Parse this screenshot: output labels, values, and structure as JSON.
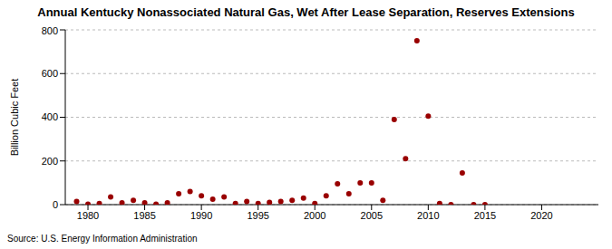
{
  "chart_data": {
    "type": "scatter",
    "title": "Annual Kentucky Nonassociated Natural Gas, Wet After Lease Separation, Reserves Extensions",
    "y_label": "Billion Cubic Feet",
    "source": "Source: U.S. Energy Information Administration",
    "x": [
      1979,
      1980,
      1981,
      1982,
      1983,
      1984,
      1985,
      1986,
      1987,
      1988,
      1989,
      1990,
      1991,
      1992,
      1993,
      1994,
      1995,
      1996,
      1997,
      1998,
      1999,
      2000,
      2001,
      2002,
      2003,
      2004,
      2005,
      2006,
      2007,
      2008,
      2009,
      2010,
      2011,
      2012,
      2013,
      2014,
      2015
    ],
    "values": [
      15,
      2,
      5,
      35,
      8,
      20,
      8,
      2,
      8,
      50,
      60,
      40,
      25,
      35,
      5,
      15,
      5,
      10,
      15,
      20,
      30,
      5,
      40,
      95,
      50,
      100,
      100,
      20,
      390,
      210,
      750,
      405,
      5,
      0,
      145,
      0,
      0
    ],
    "color": "#990000",
    "marker": "circle",
    "xlim": [
      1978,
      2025
    ],
    "xticks": [
      1980,
      1985,
      1990,
      1995,
      2000,
      2005,
      2010,
      2015,
      2020
    ],
    "ylim": [
      0,
      800
    ],
    "yticks": [
      0,
      200,
      400,
      600,
      800
    ],
    "grid": true
  }
}
